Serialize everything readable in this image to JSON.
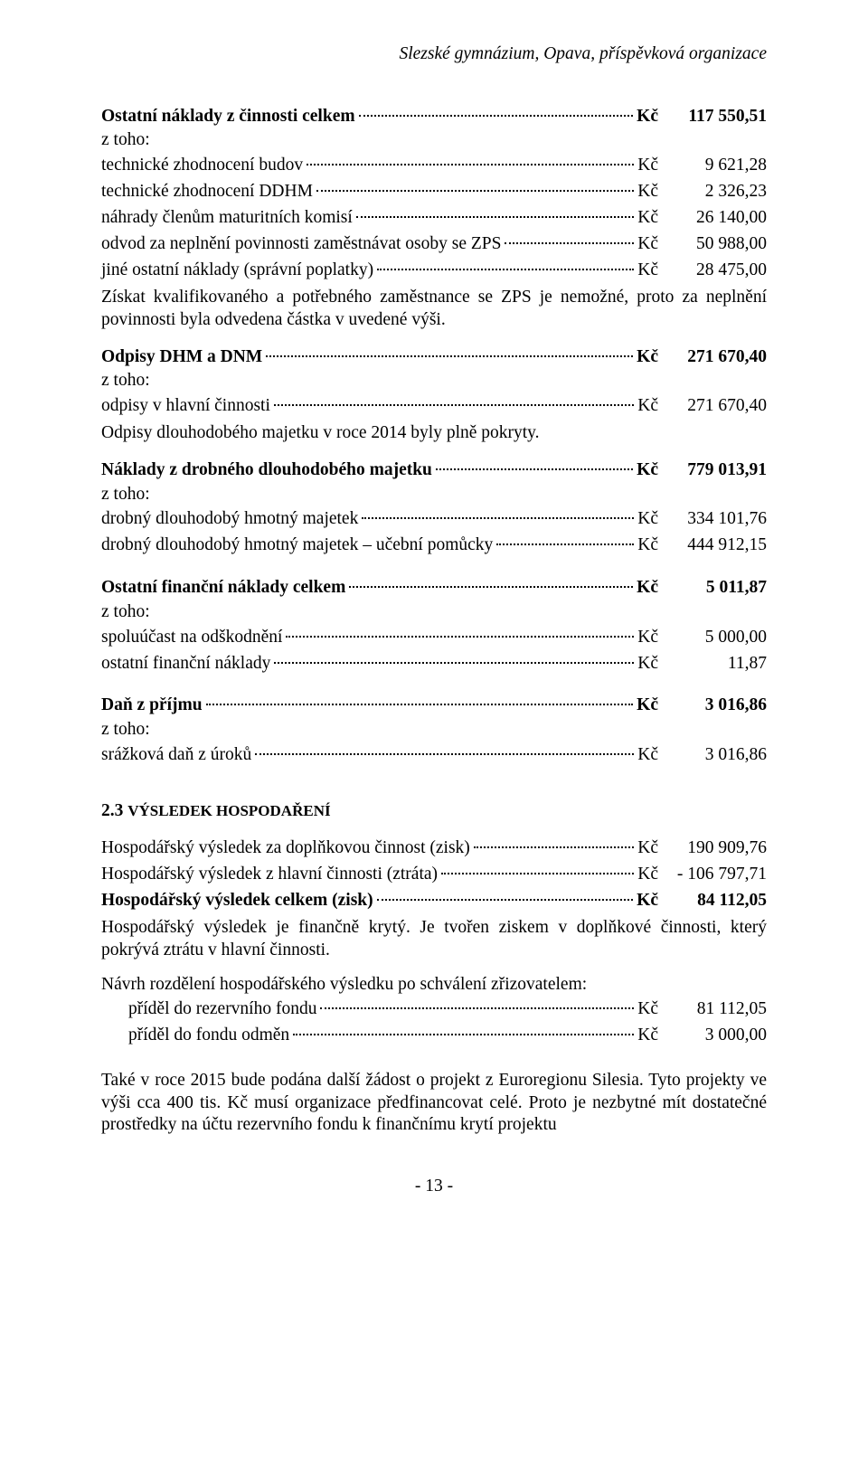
{
  "header_org": "Slezské gymnázium, Opava, příspěvková organizace",
  "currency": "Kč",
  "z_toho": "z toho:",
  "sec1": {
    "title": {
      "label": "Ostatní náklady z činnosti celkem",
      "amount": "117 550,51"
    },
    "items": [
      {
        "label": "technické zhodnocení budov",
        "amount": "9 621,28"
      },
      {
        "label": "technické zhodnocení DDHM",
        "amount": "2 326,23"
      },
      {
        "label": "náhrady členům maturitních komisí",
        "amount": "26 140,00"
      },
      {
        "label": "odvod za neplnění povinnosti zaměstnávat osoby se ZPS",
        "amount": "50 988,00"
      },
      {
        "label": "jiné ostatní náklady (správní poplatky)",
        "amount": "28 475,00"
      }
    ],
    "para": "Získat kvalifikovaného a potřebného zaměstnance se ZPS je nemožné, proto za neplnění povinnosti byla odvedena částka v uvedené výši."
  },
  "sec2": {
    "title": {
      "label": "Odpisy DHM a DNM",
      "amount": "271 670,40"
    },
    "items": [
      {
        "label": "odpisy v hlavní činnosti",
        "amount": "271 670,40"
      }
    ],
    "para": "Odpisy dlouhodobého majetku v roce 2014 byly plně pokryty."
  },
  "sec3": {
    "title": {
      "label": "Náklady z drobného dlouhodobého majetku",
      "amount": "779 013,91"
    },
    "items": [
      {
        "label": "drobný dlouhodobý hmotný majetek",
        "amount": "334 101,76"
      },
      {
        "label": "drobný dlouhodobý hmotný majetek – učební pomůcky",
        "amount": "444 912,15"
      }
    ]
  },
  "sec4": {
    "title": {
      "label": "Ostatní finanční náklady celkem",
      "amount": "5 011,87"
    },
    "items": [
      {
        "label": "spoluúčast na odškodnění",
        "amount": "5 000,00"
      },
      {
        "label": "ostatní finanční náklady",
        "amount": "11,87"
      }
    ]
  },
  "sec5": {
    "title": {
      "label": "Daň z příjmu",
      "amount": "3 016,86"
    },
    "items": [
      {
        "label": "srážková daň z úroků",
        "amount": "3 016,86"
      }
    ]
  },
  "result_section_num": "2.3 ",
  "result_section_title": "Výsledek hospodaření",
  "results": [
    {
      "label": "Hospodářský výsledek za doplňkovou činnost (zisk)",
      "amount": "190 909,76",
      "bold": false
    },
    {
      "label": "Hospodářský výsledek z hlavní činnosti (ztráta)",
      "amount": "- 106 797,71",
      "bold": false
    },
    {
      "label": "Hospodářský výsledek celkem (zisk)",
      "amount": "84 112,05",
      "bold": true
    }
  ],
  "result_para": "Hospodářský výsledek je finančně krytý. Je tvořen ziskem v doplňkové činnosti, který pokrývá ztrátu v hlavní činnosti.",
  "navrh_title": "Návrh rozdělení hospodářského výsledku po schválení zřizovatelem:",
  "navrh_items": [
    {
      "label": "příděl do rezervního fondu",
      "amount": "81 112,05"
    },
    {
      "label": "příděl do fondu odměn",
      "amount": "3 000,00"
    }
  ],
  "final_para": "Také v roce 2015 bude podána další žádost o projekt z Euroregionu Silesia. Tyto projekty ve výši cca 400 tis. Kč musí organizace předfinancovat celé. Proto je nezbytné mít dostatečné prostředky na účtu rezervního fondu k finančnímu krytí projektu",
  "page_number": "- 13 -"
}
